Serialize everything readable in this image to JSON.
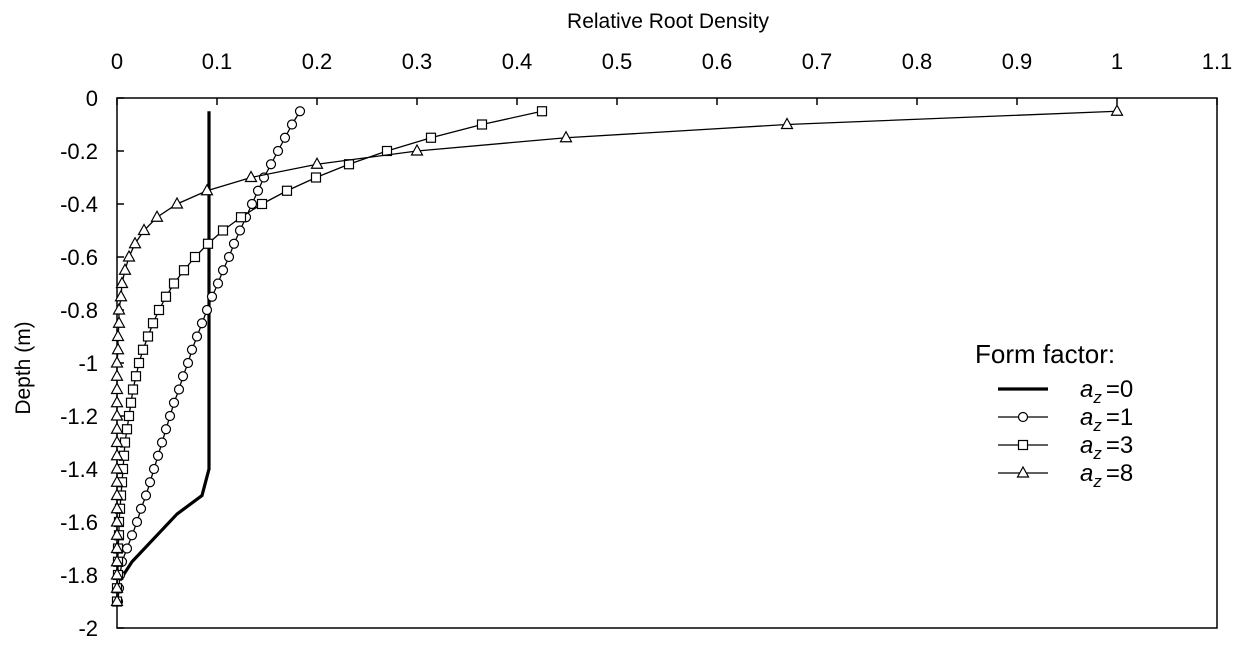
{
  "chart_data": {
    "type": "line",
    "xlabel": "Relative Root Density",
    "ylabel": "Depth (m)",
    "xlim": [
      0,
      1.1
    ],
    "ylim": [
      -2,
      0
    ],
    "x_ticks": [
      0,
      0.1,
      0.2,
      0.3,
      0.4,
      0.5,
      0.6,
      0.7,
      0.8,
      0.9,
      1,
      1.1
    ],
    "x_tick_labels": [
      "0",
      "0.1",
      "0.2",
      "0.3",
      "0.4",
      "0.5",
      "0.6",
      "0.7",
      "0.8",
      "0.9",
      "1",
      "1.1"
    ],
    "y_ticks": [
      0,
      -0.2,
      -0.4,
      -0.6,
      -0.8,
      -1,
      -1.2,
      -1.4,
      -1.6,
      -1.8,
      -2
    ],
    "y_tick_labels": [
      "0",
      "-0.2",
      "-0.4",
      "-0.6",
      "-0.8",
      "-1",
      "-1.2",
      "-1.4",
      "-1.6",
      "-1.8",
      "-2"
    ],
    "x_axis_position": "top",
    "grid": false,
    "legend": {
      "title": "Form factor:",
      "position": "right",
      "entries": [
        {
          "symbol": "a",
          "subscript": "z",
          "suffix": "=0"
        },
        {
          "symbol": "a",
          "subscript": "z",
          "suffix": "=1"
        },
        {
          "symbol": "a",
          "subscript": "z",
          "suffix": "=3"
        },
        {
          "symbol": "a",
          "subscript": "z",
          "suffix": "=8"
        }
      ]
    },
    "series": [
      {
        "marker": "none",
        "line_style": "thick",
        "points": [
          [
            0.092,
            -0.05
          ],
          [
            0.092,
            -0.3
          ],
          [
            0.092,
            -0.6
          ],
          [
            0.092,
            -0.9
          ],
          [
            0.092,
            -1.2
          ],
          [
            0.092,
            -1.4
          ],
          [
            0.085,
            -1.5
          ],
          [
            0.06,
            -1.57
          ],
          [
            0.035,
            -1.67
          ],
          [
            0.015,
            -1.75
          ],
          [
            0.003,
            -1.82
          ]
        ]
      },
      {
        "marker": "circle",
        "line_style": "thin",
        "points": [
          [
            0.183,
            -0.05
          ],
          [
            0.175,
            -0.1
          ],
          [
            0.168,
            -0.15
          ],
          [
            0.161,
            -0.2
          ],
          [
            0.154,
            -0.25
          ],
          [
            0.147,
            -0.3
          ],
          [
            0.141,
            -0.35
          ],
          [
            0.135,
            -0.4
          ],
          [
            0.129,
            -0.45
          ],
          [
            0.123,
            -0.5
          ],
          [
            0.117,
            -0.55
          ],
          [
            0.112,
            -0.6
          ],
          [
            0.106,
            -0.65
          ],
          [
            0.101,
            -0.7
          ],
          [
            0.095,
            -0.75
          ],
          [
            0.09,
            -0.8
          ],
          [
            0.085,
            -0.85
          ],
          [
            0.08,
            -0.9
          ],
          [
            0.075,
            -0.95
          ],
          [
            0.071,
            -1.0
          ],
          [
            0.066,
            -1.05
          ],
          [
            0.062,
            -1.1
          ],
          [
            0.057,
            -1.15
          ],
          [
            0.053,
            -1.2
          ],
          [
            0.049,
            -1.25
          ],
          [
            0.045,
            -1.3
          ],
          [
            0.041,
            -1.35
          ],
          [
            0.037,
            -1.4
          ],
          [
            0.033,
            -1.45
          ],
          [
            0.029,
            -1.5
          ],
          [
            0.024,
            -1.55
          ],
          [
            0.02,
            -1.6
          ],
          [
            0.015,
            -1.65
          ],
          [
            0.01,
            -1.7
          ],
          [
            0.005,
            -1.75
          ],
          [
            0.003,
            -1.8
          ],
          [
            0.002,
            -1.85
          ],
          [
            0.001,
            -1.9
          ]
        ]
      },
      {
        "marker": "square",
        "line_style": "thin",
        "points": [
          [
            0.425,
            -0.05
          ],
          [
            0.365,
            -0.1
          ],
          [
            0.314,
            -0.15
          ],
          [
            0.27,
            -0.2
          ],
          [
            0.232,
            -0.25
          ],
          [
            0.199,
            -0.3
          ],
          [
            0.17,
            -0.35
          ],
          [
            0.145,
            -0.4
          ],
          [
            0.124,
            -0.45
          ],
          [
            0.106,
            -0.5
          ],
          [
            0.091,
            -0.55
          ],
          [
            0.078,
            -0.6
          ],
          [
            0.067,
            -0.65
          ],
          [
            0.057,
            -0.7
          ],
          [
            0.049,
            -0.75
          ],
          [
            0.042,
            -0.8
          ],
          [
            0.036,
            -0.85
          ],
          [
            0.031,
            -0.9
          ],
          [
            0.026,
            -0.95
          ],
          [
            0.022,
            -1.0
          ],
          [
            0.019,
            -1.05
          ],
          [
            0.016,
            -1.1
          ],
          [
            0.014,
            -1.15
          ],
          [
            0.012,
            -1.2
          ],
          [
            0.01,
            -1.25
          ],
          [
            0.008,
            -1.3
          ],
          [
            0.007,
            -1.35
          ],
          [
            0.006,
            -1.4
          ],
          [
            0.005,
            -1.45
          ],
          [
            0.004,
            -1.5
          ],
          [
            0.003,
            -1.55
          ],
          [
            0.002,
            -1.6
          ],
          [
            0.002,
            -1.65
          ],
          [
            0.001,
            -1.7
          ],
          [
            0.001,
            -1.75
          ],
          [
            0.001,
            -1.8
          ],
          [
            0.0,
            -1.85
          ],
          [
            0.0,
            -1.9
          ]
        ]
      },
      {
        "marker": "triangle",
        "line_style": "thin",
        "points": [
          [
            1.0,
            -0.05
          ],
          [
            0.67,
            -0.1
          ],
          [
            0.449,
            -0.15
          ],
          [
            0.3,
            -0.2
          ],
          [
            0.2,
            -0.25
          ],
          [
            0.134,
            -0.3
          ],
          [
            0.09,
            -0.35
          ],
          [
            0.06,
            -0.4
          ],
          [
            0.04,
            -0.45
          ],
          [
            0.027,
            -0.5
          ],
          [
            0.018,
            -0.55
          ],
          [
            0.012,
            -0.6
          ],
          [
            0.008,
            -0.65
          ],
          [
            0.005,
            -0.7
          ],
          [
            0.004,
            -0.75
          ],
          [
            0.002,
            -0.8
          ],
          [
            0.002,
            -0.85
          ],
          [
            0.001,
            -0.9
          ],
          [
            0.001,
            -0.95
          ],
          [
            0.0,
            -1.0
          ],
          [
            0.0,
            -1.05
          ],
          [
            0.0,
            -1.1
          ],
          [
            0.0,
            -1.15
          ],
          [
            0.0,
            -1.2
          ],
          [
            0.0,
            -1.25
          ],
          [
            0.0,
            -1.3
          ],
          [
            0.0,
            -1.35
          ],
          [
            0.0,
            -1.4
          ],
          [
            0.0,
            -1.45
          ],
          [
            0.0,
            -1.5
          ],
          [
            0.0,
            -1.55
          ],
          [
            0.0,
            -1.6
          ],
          [
            0.0,
            -1.65
          ],
          [
            0.0,
            -1.7
          ],
          [
            0.0,
            -1.75
          ],
          [
            0.0,
            -1.8
          ],
          [
            0.0,
            -1.85
          ],
          [
            0.0,
            -1.9
          ]
        ]
      }
    ]
  }
}
